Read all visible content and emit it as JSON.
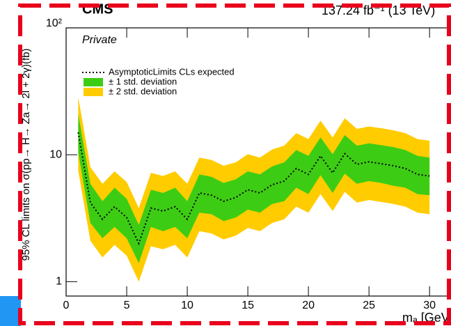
{
  "chart_data": {
    "type": "band-line",
    "title": "CMS",
    "subtitle": "137.24 fb⁻¹ (13 TeV)",
    "annotation": "Private",
    "x_label": "mₐ [GeV]",
    "y_label": "95% CL limits on σ(pp→ H→ Za→ 2l + 2γ)(fb)",
    "log_y": true,
    "xlim": [
      0,
      32
    ],
    "ylim": [
      0.77,
      100
    ],
    "xticks": [
      0,
      5,
      10,
      15,
      20,
      25,
      30
    ],
    "yticks": [
      1,
      10,
      {
        "value": 100,
        "label": "10²"
      }
    ],
    "x": [
      1,
      2,
      3,
      4,
      5,
      6,
      7,
      8,
      9,
      10,
      11,
      12,
      13,
      14,
      15,
      16,
      17,
      18,
      19,
      20,
      21,
      22,
      23,
      24,
      25,
      26,
      27,
      28,
      29,
      30
    ],
    "expected": {
      "name": "AsymptoticLimits CLs expected",
      "color": "#000000",
      "values": [
        15,
        4.2,
        3.1,
        3.9,
        3.2,
        2.0,
        3.8,
        3.6,
        3.9,
        3.1,
        5.0,
        4.8,
        4.3,
        4.6,
        5.3,
        5.0,
        5.8,
        6.2,
        7.8,
        7.0,
        9.8,
        7.2,
        10.2,
        8.4,
        8.8,
        8.5,
        8.2,
        7.8,
        7.0,
        6.8
      ]
    },
    "bands": [
      {
        "name": "± 2 std. deviation",
        "color": "#ffcc00",
        "upper": [
          28.5,
          8.0,
          5.9,
          7.4,
          6.1,
          3.8,
          7.2,
          6.8,
          7.4,
          5.9,
          9.5,
          9.1,
          8.2,
          8.7,
          10.1,
          9.5,
          11.0,
          11.8,
          14.8,
          13.3,
          18.6,
          13.7,
          19.4,
          16.0,
          16.7,
          16.2,
          15.6,
          14.8,
          13.3,
          12.9
        ],
        "lower": [
          7.5,
          2.1,
          1.55,
          1.95,
          1.6,
          1.0,
          1.9,
          1.8,
          1.95,
          1.55,
          2.5,
          2.4,
          2.15,
          2.3,
          2.65,
          2.5,
          2.9,
          3.1,
          3.9,
          3.5,
          4.9,
          3.6,
          5.1,
          4.2,
          4.4,
          4.25,
          4.1,
          3.9,
          3.5,
          3.4
        ]
      },
      {
        "name": "± 1 std. deviation",
        "color": "#3dcc14",
        "upper": [
          21,
          5.9,
          4.3,
          5.5,
          4.5,
          2.8,
          5.3,
          5.0,
          5.5,
          4.3,
          7.0,
          6.7,
          6.0,
          6.4,
          7.4,
          7.0,
          8.1,
          8.7,
          10.9,
          9.8,
          13.7,
          10.1,
          14.3,
          11.8,
          12.3,
          11.9,
          11.5,
          10.9,
          9.8,
          9.5
        ],
        "lower": [
          10.5,
          2.9,
          2.2,
          2.7,
          2.2,
          1.4,
          2.7,
          2.5,
          2.7,
          2.2,
          3.5,
          3.4,
          3.0,
          3.2,
          3.7,
          3.5,
          4.1,
          4.3,
          5.5,
          4.9,
          6.9,
          5.0,
          7.1,
          5.9,
          6.2,
          6.0,
          5.7,
          5.5,
          4.9,
          4.8
        ]
      }
    ]
  }
}
